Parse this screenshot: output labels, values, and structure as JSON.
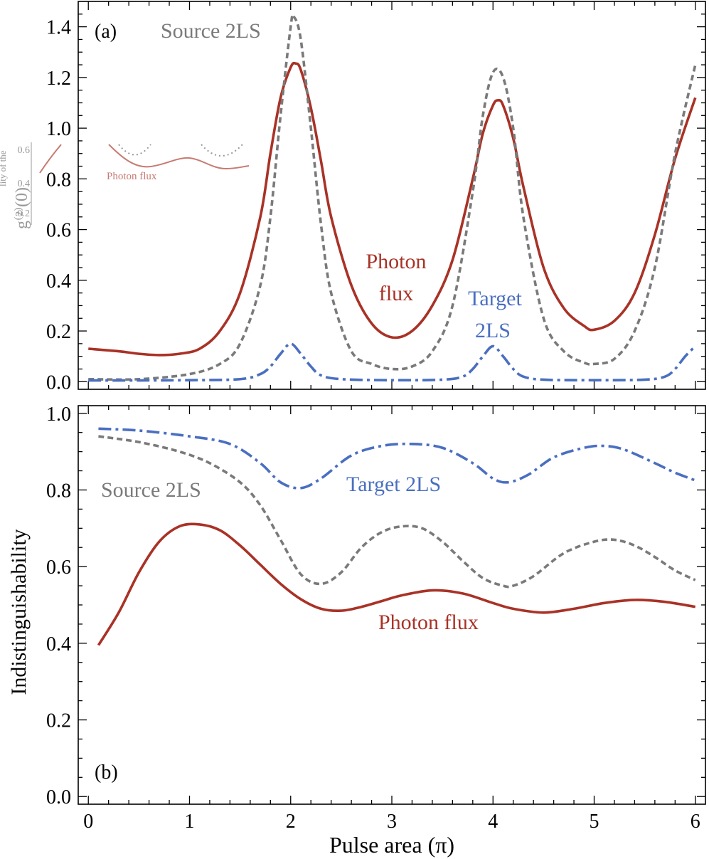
{
  "colors": {
    "photon_flux": "#a93226",
    "source_2ls": "#7a7a7a",
    "target_2ls": "#4a6fc0",
    "axis": "#000000",
    "inset_gray": "#9a9a9a",
    "inset_red": "#c67b72"
  },
  "chart_data": [
    {
      "type": "line",
      "panel_label": "(a)",
      "ylabel": "",
      "xlim": [
        -0.1,
        6.1
      ],
      "ylim": [
        -0.03,
        1.5
      ],
      "yticks": [
        0.0,
        0.2,
        0.4,
        0.6,
        0.8,
        1.0,
        1.2,
        1.4
      ],
      "ytick_labels": [
        "0.0",
        "0.2",
        "0.4",
        "0.6",
        "0.8",
        "1.0",
        "1.2",
        "1.4"
      ],
      "series": [
        {
          "name": "Photon flux",
          "label_text": [
            "Photon",
            "flux"
          ],
          "style": "solid",
          "x": [
            0,
            0.3,
            0.5,
            0.7,
            0.9,
            1.1,
            1.3,
            1.5,
            1.7,
            1.8,
            1.9,
            2.0,
            2.05,
            2.1,
            2.2,
            2.3,
            2.4,
            2.6,
            2.8,
            3.0,
            3.2,
            3.4,
            3.6,
            3.8,
            3.9,
            4.0,
            4.05,
            4.1,
            4.2,
            4.3,
            4.5,
            4.7,
            4.9,
            5.0,
            5.2,
            5.4,
            5.6,
            5.8,
            6.0
          ],
          "y": [
            0.13,
            0.12,
            0.11,
            0.105,
            0.11,
            0.13,
            0.2,
            0.35,
            0.65,
            0.9,
            1.12,
            1.24,
            1.255,
            1.23,
            1.08,
            0.87,
            0.65,
            0.38,
            0.23,
            0.175,
            0.2,
            0.3,
            0.48,
            0.8,
            0.98,
            1.09,
            1.11,
            1.09,
            0.96,
            0.77,
            0.45,
            0.29,
            0.22,
            0.205,
            0.24,
            0.35,
            0.58,
            0.88,
            1.12
          ]
        },
        {
          "name": "Source 2LS",
          "label_text": [
            "Source 2LS"
          ],
          "style": "dashed",
          "x": [
            0,
            0.5,
            1.0,
            1.3,
            1.5,
            1.7,
            1.8,
            1.9,
            2.0,
            2.03,
            2.1,
            2.2,
            2.3,
            2.4,
            2.6,
            2.8,
            3.0,
            3.2,
            3.4,
            3.6,
            3.8,
            3.9,
            4.0,
            4.1,
            4.2,
            4.3,
            4.5,
            4.7,
            4.9,
            5.0,
            5.2,
            5.4,
            5.6,
            5.8,
            6.0
          ],
          "y": [
            0.01,
            0.01,
            0.03,
            0.07,
            0.15,
            0.38,
            0.65,
            1.05,
            1.4,
            1.44,
            1.35,
            1.0,
            0.62,
            0.35,
            0.12,
            0.07,
            0.05,
            0.06,
            0.12,
            0.3,
            0.75,
            1.05,
            1.22,
            1.2,
            1.0,
            0.65,
            0.25,
            0.12,
            0.075,
            0.07,
            0.09,
            0.2,
            0.45,
            0.9,
            1.25
          ]
        },
        {
          "name": "Target 2LS",
          "label_text": [
            "Target",
            "2LS"
          ],
          "style": "dashdot",
          "x": [
            0,
            0.5,
            1.0,
            1.5,
            1.7,
            1.8,
            1.9,
            2.0,
            2.1,
            2.2,
            2.3,
            2.5,
            3.0,
            3.5,
            3.7,
            3.8,
            3.9,
            4.0,
            4.1,
            4.2,
            4.3,
            4.5,
            5.0,
            5.5,
            5.7,
            5.8,
            5.9,
            6.0
          ],
          "y": [
            0.005,
            0.005,
            0.006,
            0.01,
            0.03,
            0.06,
            0.11,
            0.15,
            0.11,
            0.06,
            0.025,
            0.01,
            0.006,
            0.008,
            0.02,
            0.05,
            0.1,
            0.14,
            0.1,
            0.05,
            0.02,
            0.008,
            0.006,
            0.008,
            0.02,
            0.05,
            0.1,
            0.14
          ]
        }
      ],
      "inset": {
        "tick_labels": [
          "0.6",
          "0.4",
          "0.2"
        ],
        "ylabel_lines": [
          "lity of the",
          "g⁽²⁾(0)"
        ],
        "curve_label": "Photon flux"
      }
    },
    {
      "type": "line",
      "panel_label": "(b)",
      "xlabel": "Pulse area (π)",
      "ylabel": "Indistinguishability",
      "xlim": [
        -0.1,
        6.1
      ],
      "ylim": [
        -0.02,
        1.02
      ],
      "xticks": [
        0,
        1,
        2,
        3,
        4,
        5,
        6
      ],
      "xtick_labels": [
        "0",
        "1",
        "2",
        "3",
        "4",
        "5",
        "6"
      ],
      "yticks": [
        0.0,
        0.2,
        0.4,
        0.6,
        0.8,
        1.0
      ],
      "ytick_labels": [
        "0.0",
        "0.2",
        "0.4",
        "0.6",
        "0.8",
        "1.0"
      ],
      "series": [
        {
          "name": "Target 2LS",
          "label_text": [
            "Target 2LS"
          ],
          "style": "dashdot",
          "x": [
            0.1,
            0.5,
            1.0,
            1.4,
            1.7,
            1.9,
            2.1,
            2.3,
            2.6,
            2.9,
            3.2,
            3.5,
            3.8,
            4.0,
            4.15,
            4.35,
            4.6,
            4.9,
            5.1,
            5.3,
            5.6,
            5.8,
            6.0
          ],
          "y": [
            0.96,
            0.955,
            0.94,
            0.92,
            0.87,
            0.82,
            0.805,
            0.83,
            0.89,
            0.915,
            0.92,
            0.91,
            0.87,
            0.83,
            0.82,
            0.84,
            0.885,
            0.91,
            0.915,
            0.905,
            0.87,
            0.845,
            0.825
          ]
        },
        {
          "name": "Source 2LS",
          "label_text": [
            "Source 2LS"
          ],
          "style": "dashed",
          "x": [
            0.1,
            0.5,
            0.9,
            1.2,
            1.5,
            1.7,
            1.9,
            2.1,
            2.3,
            2.5,
            2.7,
            2.9,
            3.1,
            3.3,
            3.5,
            3.7,
            3.9,
            4.1,
            4.2,
            4.4,
            4.7,
            5.0,
            5.2,
            5.4,
            5.6,
            5.8,
            6.0
          ],
          "y": [
            0.94,
            0.925,
            0.9,
            0.87,
            0.82,
            0.76,
            0.67,
            0.58,
            0.555,
            0.585,
            0.65,
            0.69,
            0.705,
            0.7,
            0.665,
            0.615,
            0.57,
            0.55,
            0.55,
            0.575,
            0.635,
            0.665,
            0.67,
            0.655,
            0.625,
            0.59,
            0.565
          ]
        },
        {
          "name": "Photon flux",
          "label_text": [
            "Photon flux"
          ],
          "style": "solid",
          "x": [
            0.1,
            0.3,
            0.5,
            0.7,
            0.9,
            1.1,
            1.3,
            1.5,
            1.7,
            1.9,
            2.1,
            2.3,
            2.5,
            2.7,
            2.9,
            3.1,
            3.4,
            3.7,
            4.0,
            4.2,
            4.5,
            4.8,
            5.1,
            5.4,
            5.7,
            6.0
          ],
          "y": [
            0.395,
            0.48,
            0.585,
            0.665,
            0.705,
            0.71,
            0.695,
            0.655,
            0.605,
            0.555,
            0.515,
            0.49,
            0.485,
            0.495,
            0.51,
            0.525,
            0.538,
            0.53,
            0.505,
            0.49,
            0.48,
            0.49,
            0.505,
            0.513,
            0.508,
            0.495
          ]
        }
      ]
    }
  ]
}
